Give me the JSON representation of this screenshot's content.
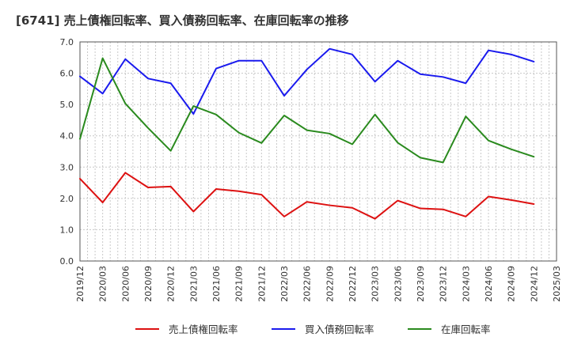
{
  "chart_data": {
    "type": "line",
    "title": "[6741]  売上債権回転率、買入債務回転率、在庫回転率の推移",
    "xlabel": "",
    "ylabel": "",
    "ylim": [
      0,
      7
    ],
    "yticks": [
      "0.0",
      "1.0",
      "2.0",
      "3.0",
      "4.0",
      "5.0",
      "6.0",
      "7.0"
    ],
    "categories": [
      "2019/12",
      "2020/03",
      "2020/06",
      "2020/09",
      "2020/12",
      "2021/03",
      "2021/06",
      "2021/09",
      "2021/12",
      "2022/03",
      "2022/06",
      "2022/09",
      "2022/12",
      "2023/03",
      "2023/06",
      "2023/09",
      "2023/12",
      "2024/03",
      "2024/06",
      "2024/09",
      "2024/12",
      "2025/03"
    ],
    "grid": true,
    "legend_position": "bottom",
    "series": [
      {
        "name": "売上債権回転率",
        "color": "#dd1111",
        "values": [
          2.63,
          1.87,
          2.82,
          2.35,
          2.38,
          1.58,
          2.3,
          2.23,
          2.12,
          1.42,
          1.89,
          1.78,
          1.7,
          1.35,
          1.93,
          1.68,
          1.65,
          1.42,
          2.06,
          1.95,
          1.82,
          null
        ]
      },
      {
        "name": "買入債務回転率",
        "color": "#1a1aee",
        "values": [
          5.9,
          5.35,
          6.45,
          5.83,
          5.68,
          4.7,
          6.15,
          6.4,
          6.4,
          5.28,
          6.12,
          6.78,
          6.6,
          5.73,
          6.4,
          5.97,
          5.88,
          5.68,
          6.73,
          6.6,
          6.37,
          null
        ]
      },
      {
        "name": "在庫回転率",
        "color": "#2a8a1e",
        "values": [
          3.9,
          6.48,
          5.03,
          4.25,
          3.52,
          4.95,
          4.68,
          4.1,
          3.77,
          4.65,
          4.18,
          4.07,
          3.73,
          4.68,
          3.78,
          3.3,
          3.15,
          4.62,
          3.85,
          3.57,
          3.33,
          null
        ]
      }
    ]
  }
}
